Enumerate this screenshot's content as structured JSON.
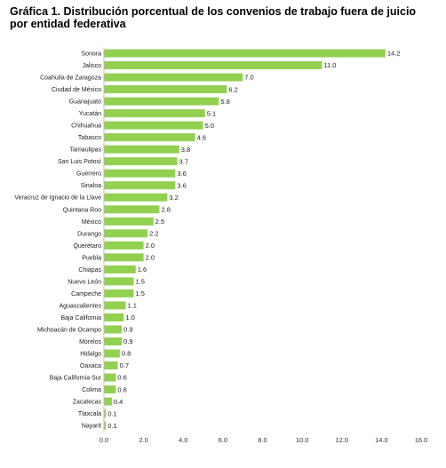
{
  "chart_data": {
    "type": "bar",
    "orientation": "horizontal",
    "title": "Gráfica 1. Distribución porcentual de los convenios de trabajo fuera de juicio por entidad federativa",
    "categories": [
      "Sonora",
      "Jalisco",
      "Coahuila de Zaragoza",
      "Ciudad de México",
      "Guanajuato",
      "Yucatán",
      "Chihuahua",
      "Tabasco",
      "Tamaulipas",
      "San Luis Potosí",
      "Guerrero",
      "Sinaloa",
      "Veracruz de Ignacio de la Llave",
      "Quintana Roo",
      "México",
      "Durango",
      "Querétaro",
      "Puebla",
      "Chiapas",
      "Nuevo León",
      "Campeche",
      "Aguascalientes",
      "Baja California",
      "Michoacán de Ocampo",
      "Morelos",
      "Hidalgo",
      "Oaxaca",
      "Baja California Sur",
      "Colima",
      "Zacatecas",
      "Tlaxcala",
      "Nayarit"
    ],
    "values": [
      14.2,
      11.0,
      7.0,
      6.2,
      5.8,
      5.1,
      5.0,
      4.6,
      3.8,
      3.7,
      3.6,
      3.6,
      3.2,
      2.8,
      2.5,
      2.2,
      2.0,
      2.0,
      1.6,
      1.5,
      1.5,
      1.1,
      1.0,
      0.9,
      0.9,
      0.8,
      0.7,
      0.6,
      0.6,
      0.4,
      0.1,
      0.1
    ],
    "value_labels": [
      "14.2",
      "11.0",
      "7.0",
      "6.2",
      "5.8",
      "5.1",
      "5.0",
      "4.6",
      "3.8",
      "3.7",
      "3.6",
      "3.6",
      "3.2",
      "2.8",
      "2.5",
      "2.2",
      "2.0",
      "2.0",
      "1.6",
      "1.5",
      "1.5",
      "1.1",
      "1.0",
      "0.9",
      "0.9",
      "0.8",
      "0.7",
      "0.6",
      "0.6",
      "0.4",
      "0.1",
      "0.1"
    ],
    "xlim": [
      0,
      16
    ],
    "xticks": [
      "0.0",
      "2.0",
      "4.0",
      "6.0",
      "8.0",
      "10.0",
      "12.0",
      "14.0",
      "16.0"
    ],
    "grid": false,
    "legend": "none",
    "bar_color": "#92D050"
  }
}
